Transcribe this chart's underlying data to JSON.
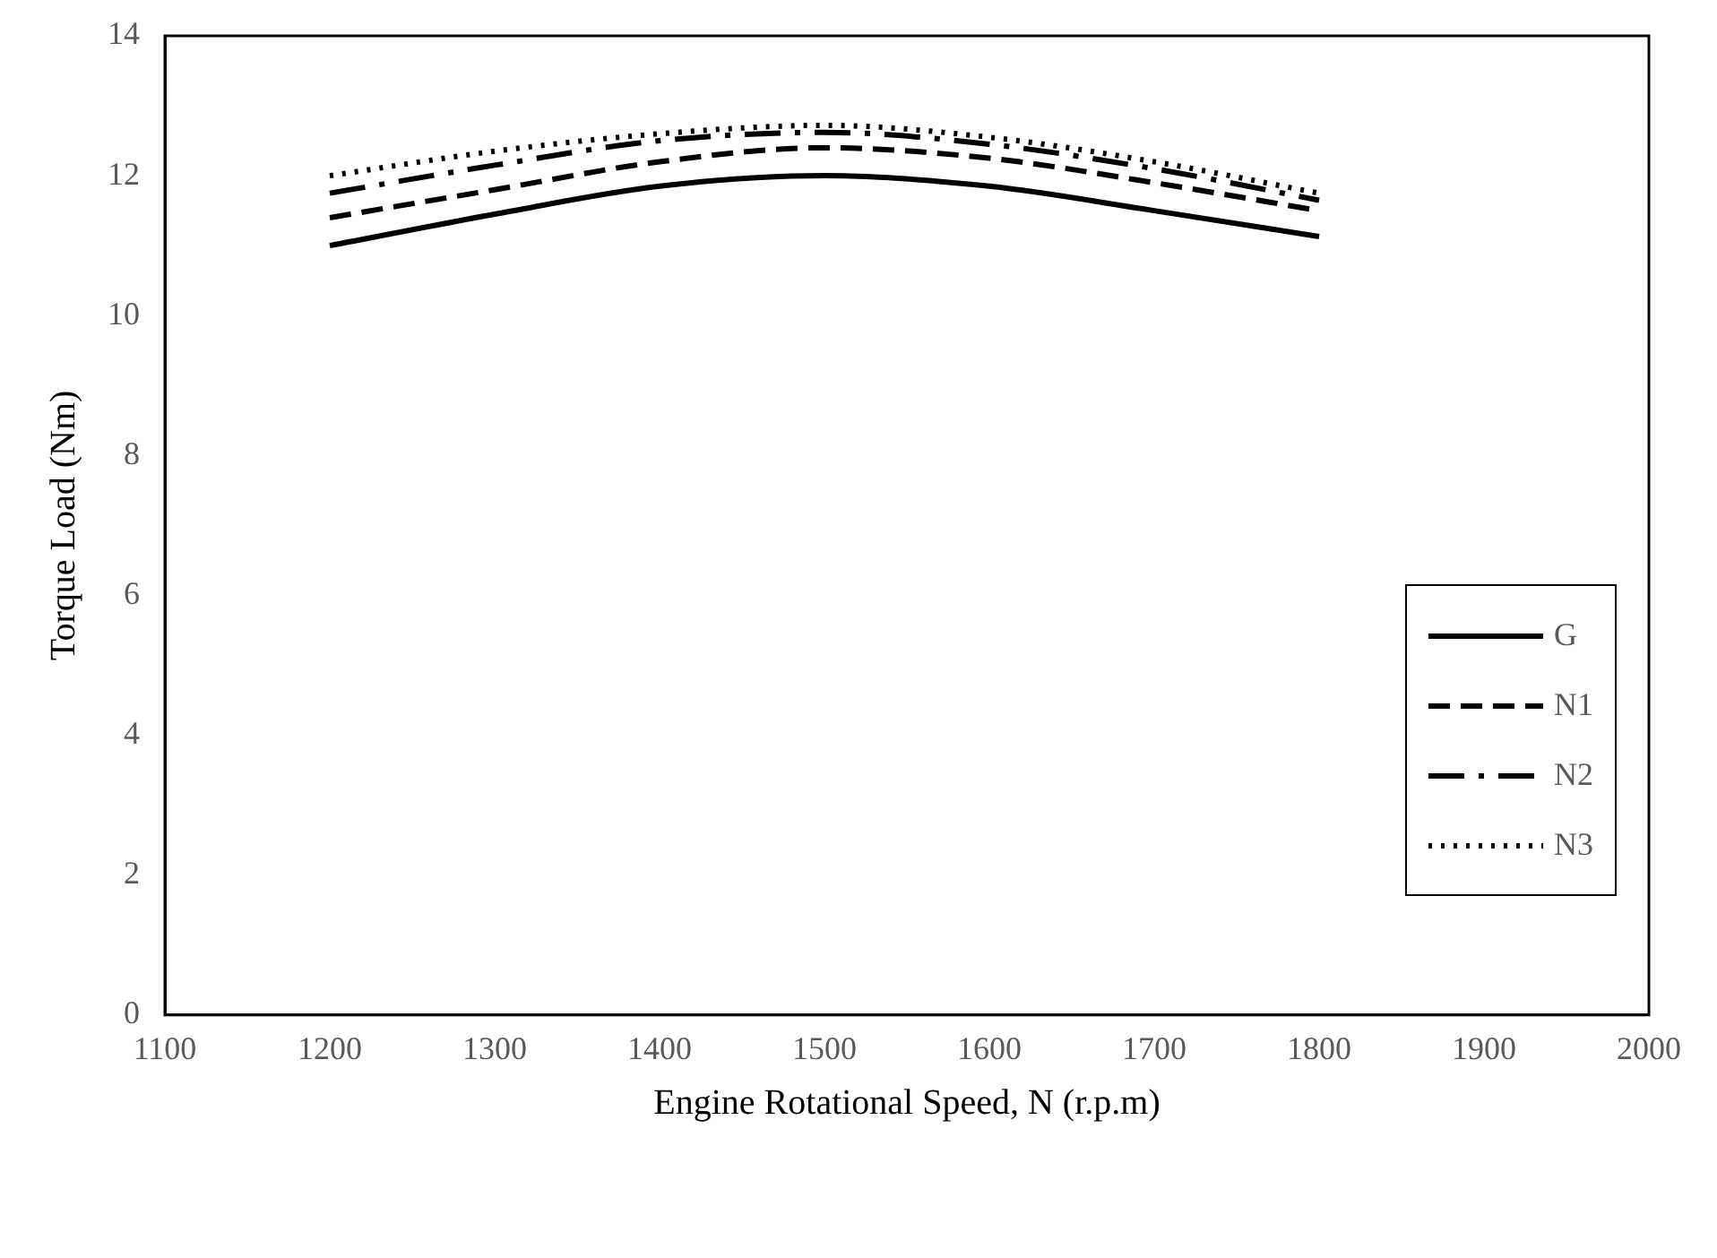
{
  "chart_data": {
    "type": "line",
    "xlabel": "Engine Rotational Speed, N (r.p.m)",
    "ylabel": "Torque Load (Nm)",
    "x": [
      1200,
      1300,
      1400,
      1500,
      1600,
      1700,
      1800
    ],
    "series": [
      {
        "name": "G",
        "color": "#000000",
        "line_style": "solid",
        "values": [
          11.0,
          11.45,
          11.85,
          12.0,
          11.85,
          11.5,
          11.13
        ]
      },
      {
        "name": "N1",
        "color": "#000000",
        "line_style": "dashed",
        "values": [
          11.4,
          11.8,
          12.2,
          12.4,
          12.25,
          11.9,
          11.5
        ]
      },
      {
        "name": "N2",
        "color": "#000000",
        "line_style": "dashdot",
        "values": [
          11.75,
          12.15,
          12.5,
          12.62,
          12.45,
          12.1,
          11.65
        ]
      },
      {
        "name": "N3",
        "color": "#000000",
        "line_style": "dotted",
        "values": [
          12.0,
          12.35,
          12.6,
          12.72,
          12.55,
          12.2,
          11.75
        ]
      }
    ],
    "xlim": [
      1100,
      2000
    ],
    "xticks": [
      1100,
      1200,
      1300,
      1400,
      1500,
      1600,
      1700,
      1800,
      1900,
      2000
    ],
    "ylim": [
      0,
      14
    ],
    "yticks": [
      0,
      2,
      4,
      6,
      8,
      10,
      12,
      14
    ],
    "grid": false,
    "legend": "right",
    "marker": "none"
  }
}
